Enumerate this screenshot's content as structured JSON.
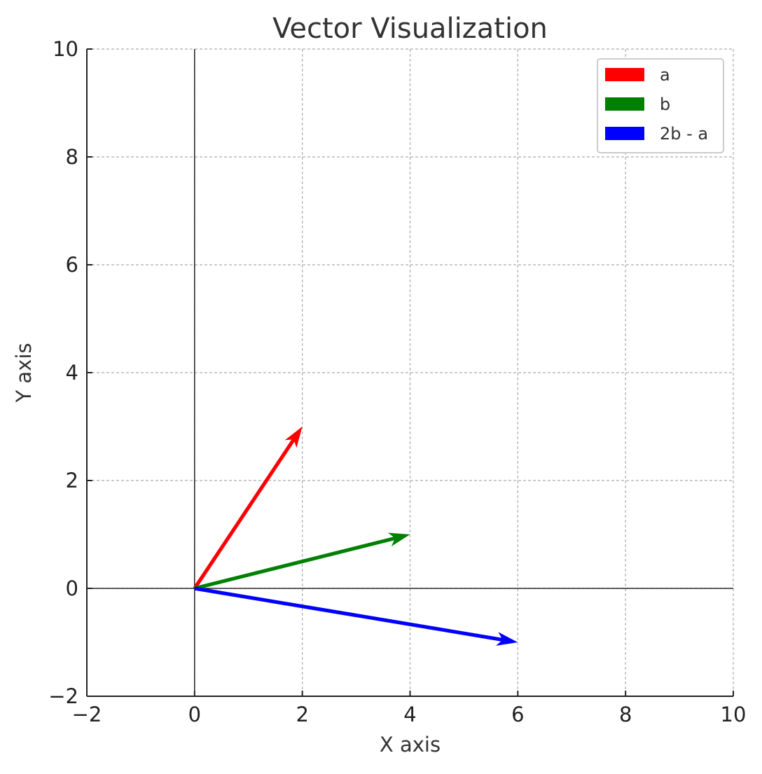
{
  "chart_data": {
    "type": "quiver",
    "title": "Vector Visualization",
    "xlabel": "X axis",
    "ylabel": "Y axis",
    "xlim": [
      -2,
      10
    ],
    "ylim": [
      -2,
      10
    ],
    "xticks": [
      -2,
      0,
      2,
      4,
      6,
      8,
      10
    ],
    "yticks": [
      -2,
      0,
      2,
      4,
      6,
      8,
      10
    ],
    "xtick_labels": [
      "−2",
      "0",
      "2",
      "4",
      "6",
      "8",
      "10"
    ],
    "ytick_labels": [
      "−2",
      "0",
      "2",
      "4",
      "6",
      "8",
      "10"
    ],
    "grid": true,
    "legend_position": "top-right",
    "series": [
      {
        "name": "a",
        "origin": [
          0,
          0
        ],
        "vector": [
          2,
          3
        ],
        "color": "#ff0000"
      },
      {
        "name": "b",
        "origin": [
          0,
          0
        ],
        "vector": [
          4,
          1
        ],
        "color": "#008000"
      },
      {
        "name": "2b - a",
        "origin": [
          0,
          0
        ],
        "vector": [
          6,
          -1
        ],
        "color": "#0000ff"
      }
    ]
  }
}
